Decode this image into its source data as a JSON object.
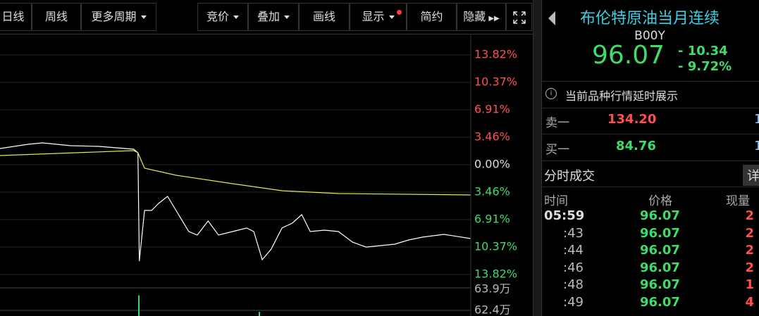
{
  "toolbar": {
    "buttons": [
      "日线",
      "周线",
      "更多周期",
      "竞价",
      "叠加",
      "画线",
      "显示",
      "简约",
      "隐藏"
    ]
  },
  "chart_data": [
    {
      "type": "line",
      "ylim": [
        -13.82,
        13.82
      ],
      "xlim": [
        0,
        100
      ],
      "yticks": [
        {
          "value": 13.82,
          "label": "13.82%"
        },
        {
          "value": 10.37,
          "label": "10.37%"
        },
        {
          "value": 6.91,
          "label": "6.91%"
        },
        {
          "value": 3.46,
          "label": "3.46%"
        },
        {
          "value": 0,
          "label": "0.00%"
        },
        {
          "value": -3.46,
          "label": "3.46%"
        },
        {
          "value": -6.91,
          "label": "6.91%"
        },
        {
          "value": -10.37,
          "label": "10.37%"
        },
        {
          "value": -13.82,
          "label": "13.82%"
        }
      ],
      "series": [
        {
          "color": "#ffffff",
          "x": [
            0,
            6,
            9,
            15,
            21,
            28.4,
            29.3,
            29.6,
            30.7,
            32.2,
            33.7,
            35.6,
            37.4,
            40.1,
            41.9,
            44.2,
            46.4,
            49.4,
            52.4,
            53.9,
            55.7,
            57.6,
            59.9,
            62.1,
            64.1,
            65.9,
            68.9,
            71.9,
            74.9,
            77.8,
            80.8,
            83.8,
            86.8,
            89.8,
            94.3,
            100
          ],
          "values": [
            2.04,
            2.57,
            2.75,
            2.39,
            2.3,
            1.95,
            1.51,
            -12.14,
            -5.76,
            -5.76,
            -4.87,
            -3.99,
            -5.76,
            -8.42,
            -8.86,
            -7.09,
            -8.86,
            -8.42,
            -7.97,
            -8.42,
            -11.96,
            -10.63,
            -7.97,
            -7.35,
            -6.29,
            -8.42,
            -8.24,
            -8.42,
            -9.75,
            -10.37,
            -10.19,
            -10.01,
            -9.48,
            -9.12,
            -8.77,
            -9.3
          ]
        },
        {
          "color": "#e8e84a",
          "x": [
            0,
            28.4,
            29.3,
            30.7,
            37.4,
            49.4,
            59.9,
            71.9,
            100
          ],
          "values": [
            1.15,
            1.77,
            1.51,
            -0.44,
            -1.33,
            -2.39,
            -3.28,
            -3.63,
            -3.81
          ]
        }
      ]
    },
    {
      "type": "bar",
      "ylim": [
        620250,
        639000
      ],
      "xlim": [
        0,
        100
      ],
      "color": "#3fdc6b",
      "yticks": [
        {
          "value": 639000,
          "label": "63.9万"
        },
        {
          "value": 624000,
          "label": "62.4万"
        }
      ],
      "x": [
        29.5,
        55.1
      ],
      "values": [
        634000,
        623000
      ]
    }
  ],
  "quote": {
    "title": "布伦特原油当月连续",
    "code": "B00Y",
    "price": "96.07",
    "change": "- 10.34",
    "change_pct": "- 9.72%",
    "notice": "当前品种行情延时展示",
    "sell": {
      "label": "卖一",
      "price": "134.20",
      "volume": "1"
    },
    "buy": {
      "label": "买一",
      "price": "84.76",
      "volume": "1"
    },
    "trades": {
      "title": "分时成交",
      "detail": "详",
      "headers": [
        "时间",
        "价格",
        "现量"
      ],
      "rows": [
        [
          "05:59",
          "96.07",
          "2"
        ],
        [
          ":43",
          "96.07",
          "2"
        ],
        [
          ":44",
          "96.07",
          "2"
        ],
        [
          ":46",
          "96.07",
          "2"
        ],
        [
          ":48",
          "96.07",
          "1"
        ],
        [
          ":49",
          "96.07",
          "4"
        ]
      ]
    }
  }
}
